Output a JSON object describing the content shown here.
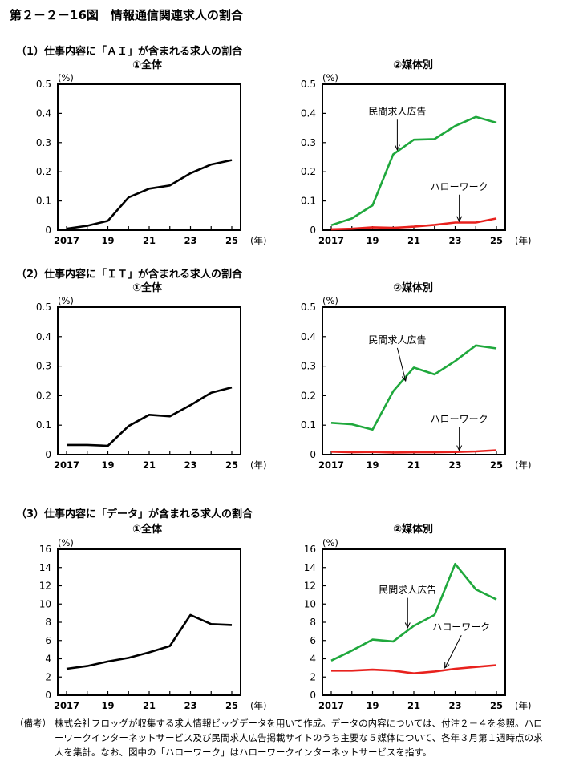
{
  "figure_title": "第２－２－16図　情報通信関連求人の割合",
  "sections": [
    {
      "title": "（1）仕事内容に「ＡＩ」が含まれる求人の割合",
      "left_title": "①全体",
      "right_title": "②媒体別"
    },
    {
      "title": "（2）仕事内容に「ＩＴ」が含まれる求人の割合",
      "left_title": "①全体",
      "right_title": "②媒体別"
    },
    {
      "title": "（3）仕事内容に「データ」が含まれる求人の割合",
      "left_title": "①全体",
      "right_title": "②媒体別"
    }
  ],
  "note": {
    "label": "（備考）",
    "text": "株式会社フロッグが収集する求人情報ビッグデータを用いて作成。データの内容については、付注２－４を参照。ハローワークインターネットサービス及び民間求人広告掲載サイトのうち主要な５媒体について、各年３月第１週時点の求人を集計。なお、図中の「ハローワーク」はハローワークインターネットサービスを指す。"
  },
  "colors": {
    "total": "#000000",
    "private": "#1fa83c",
    "hellowork": "#e8211d"
  },
  "chart_data": [
    {
      "type": "line",
      "id": "ai-total",
      "yunit": "(%)",
      "xunit": "(年)",
      "x": [
        2017,
        2018,
        2019,
        2020,
        2021,
        2022,
        2023,
        2024,
        2025
      ],
      "xticks": [
        2017,
        2019,
        2021,
        2023,
        2025
      ],
      "xticklabels": [
        "2017",
        "19",
        "21",
        "23",
        "25"
      ],
      "ylim": [
        0,
        0.5
      ],
      "yticks": [
        0,
        0.1,
        0.2,
        0.3,
        0.4,
        0.5
      ],
      "yticklabels": [
        "0",
        "0.1",
        "0.2",
        "0.3",
        "0.4",
        "0.5"
      ],
      "series": [
        {
          "values": [
            0.005,
            0.015,
            0.032,
            0.112,
            0.142,
            0.153,
            0.195,
            0.225,
            0.24
          ]
        }
      ]
    },
    {
      "type": "line",
      "id": "ai-media",
      "yunit": "(%)",
      "xunit": "(年)",
      "x": [
        2017,
        2018,
        2019,
        2020,
        2021,
        2022,
        2023,
        2024,
        2025
      ],
      "xticks": [
        2017,
        2019,
        2021,
        2023,
        2025
      ],
      "xticklabels": [
        "2017",
        "19",
        "21",
        "23",
        "25"
      ],
      "ylim": [
        0,
        0.5
      ],
      "yticks": [
        0,
        0.1,
        0.2,
        0.3,
        0.4,
        0.5
      ],
      "yticklabels": [
        "0",
        "0.1",
        "0.2",
        "0.3",
        "0.4",
        "0.5"
      ],
      "series": [
        {
          "name": "民間求人広告",
          "color": "#1fa83c",
          "values": [
            0.017,
            0.04,
            0.085,
            0.26,
            0.31,
            0.312,
            0.357,
            0.388,
            0.368
          ],
          "label_pos": {
            "x": 2020.2,
            "y": 0.395
          },
          "arrow_to": {
            "x": 2020.2,
            "y": 0.275
          }
        },
        {
          "name": "ハローワーク",
          "color": "#e8211d",
          "values": [
            0.003,
            0.005,
            0.01,
            0.008,
            0.012,
            0.018,
            0.026,
            0.026,
            0.04
          ],
          "label_pos": {
            "x": 2023.2,
            "y": 0.138
          },
          "arrow_to": {
            "x": 2023.2,
            "y": 0.03
          }
        }
      ]
    },
    {
      "type": "line",
      "id": "it-total",
      "yunit": "(%)",
      "xunit": "(年)",
      "x": [
        2017,
        2018,
        2019,
        2020,
        2021,
        2022,
        2023,
        2024,
        2025
      ],
      "xticks": [
        2017,
        2019,
        2021,
        2023,
        2025
      ],
      "xticklabels": [
        "2017",
        "19",
        "21",
        "23",
        "25"
      ],
      "ylim": [
        0,
        0.5
      ],
      "yticks": [
        0,
        0.1,
        0.2,
        0.3,
        0.4,
        0.5
      ],
      "yticklabels": [
        "0",
        "0.1",
        "0.2",
        "0.3",
        "0.4",
        "0.5"
      ],
      "series": [
        {
          "values": [
            0.033,
            0.033,
            0.03,
            0.097,
            0.135,
            0.13,
            0.168,
            0.21,
            0.228
          ]
        }
      ]
    },
    {
      "type": "line",
      "id": "it-media",
      "yunit": "(%)",
      "xunit": "(年)",
      "x": [
        2017,
        2018,
        2019,
        2020,
        2021,
        2022,
        2023,
        2024,
        2025
      ],
      "xticks": [
        2017,
        2019,
        2021,
        2023,
        2025
      ],
      "xticklabels": [
        "2017",
        "19",
        "21",
        "23",
        "25"
      ],
      "ylim": [
        0,
        0.5
      ],
      "yticks": [
        0,
        0.1,
        0.2,
        0.3,
        0.4,
        0.5
      ],
      "yticklabels": [
        "0",
        "0.1",
        "0.2",
        "0.3",
        "0.4",
        "0.5"
      ],
      "series": [
        {
          "name": "民間求人広告",
          "color": "#1fa83c",
          "values": [
            0.108,
            0.103,
            0.085,
            0.215,
            0.295,
            0.272,
            0.317,
            0.37,
            0.36
          ],
          "label_pos": {
            "x": 2020.2,
            "y": 0.378
          },
          "arrow_to": {
            "x": 2020.6,
            "y": 0.25
          }
        },
        {
          "name": "ハローワーク",
          "color": "#e8211d",
          "values": [
            0.01,
            0.008,
            0.009,
            0.007,
            0.008,
            0.008,
            0.009,
            0.011,
            0.015
          ],
          "label_pos": {
            "x": 2023.2,
            "y": 0.11
          },
          "arrow_to": {
            "x": 2023.2,
            "y": 0.014
          }
        }
      ]
    },
    {
      "type": "line",
      "id": "data-total",
      "yunit": "(%)",
      "xunit": "(年)",
      "x": [
        2017,
        2018,
        2019,
        2020,
        2021,
        2022,
        2023,
        2024,
        2025
      ],
      "xticks": [
        2017,
        2019,
        2021,
        2023,
        2025
      ],
      "xticklabels": [
        "2017",
        "19",
        "21",
        "23",
        "25"
      ],
      "ylim": [
        0,
        16
      ],
      "yticks": [
        0,
        2,
        4,
        6,
        8,
        10,
        12,
        14,
        16
      ],
      "yticklabels": [
        "0",
        "2",
        "4",
        "6",
        "8",
        "10",
        "12",
        "14",
        "16"
      ],
      "series": [
        {
          "values": [
            2.9,
            3.2,
            3.7,
            4.1,
            4.7,
            5.4,
            8.8,
            7.8,
            7.7
          ]
        }
      ]
    },
    {
      "type": "line",
      "id": "data-media",
      "yunit": "(%)",
      "xunit": "(年)",
      "x": [
        2017,
        2018,
        2019,
        2020,
        2021,
        2022,
        2023,
        2024,
        2025
      ],
      "xticks": [
        2017,
        2019,
        2021,
        2023,
        2025
      ],
      "xticklabels": [
        "2017",
        "19",
        "21",
        "23",
        "25"
      ],
      "ylim": [
        0,
        16
      ],
      "yticks": [
        0,
        2,
        4,
        6,
        8,
        10,
        12,
        14,
        16
      ],
      "yticklabels": [
        "0",
        "2",
        "4",
        "6",
        "8",
        "10",
        "12",
        "14",
        "16"
      ],
      "series": [
        {
          "name": "民間求人広告",
          "color": "#1fa83c",
          "values": [
            3.8,
            4.9,
            6.1,
            5.9,
            7.6,
            8.8,
            14.4,
            11.6,
            10.5
          ],
          "label_pos": {
            "x": 2020.7,
            "y": 11.2
          },
          "arrow_to": {
            "x": 2020.7,
            "y": 7.4
          }
        },
        {
          "name": "ハローワーク",
          "color": "#e8211d",
          "values": [
            2.7,
            2.7,
            2.8,
            2.7,
            2.4,
            2.6,
            2.9,
            3.1,
            3.3
          ],
          "label_pos": {
            "x": 2023.3,
            "y": 7.1
          },
          "arrow_to": {
            "x": 2022.5,
            "y": 3.0
          }
        }
      ]
    }
  ]
}
